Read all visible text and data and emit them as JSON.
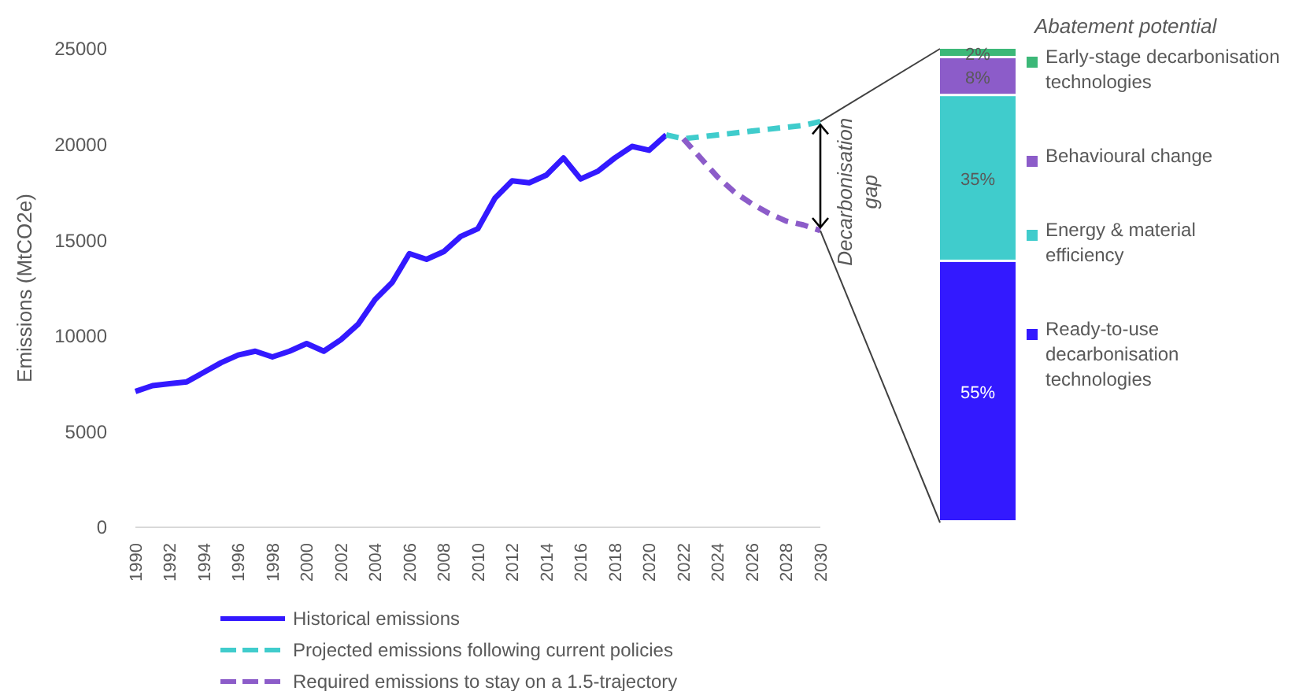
{
  "chart_data": [
    {
      "type": "line",
      "ylabel": "Emissions (MtCO2e)",
      "xlim": [
        1990,
        2030
      ],
      "xticks": [
        1990,
        1992,
        1994,
        1996,
        1998,
        2000,
        2002,
        2004,
        2006,
        2008,
        2010,
        2012,
        2014,
        2016,
        2018,
        2020,
        2022,
        2024,
        2026,
        2028,
        2030
      ],
      "ylim": [
        0,
        25000
      ],
      "yticks": [
        0,
        5000,
        10000,
        15000,
        20000,
        25000
      ],
      "grid": false,
      "legend": "bottom",
      "series": [
        {
          "name": "Historical emissions",
          "color": "#3319ff",
          "line_style": "solid",
          "x": [
            1990,
            1991,
            1992,
            1993,
            1994,
            1995,
            1996,
            1997,
            1998,
            1999,
            2000,
            2001,
            2002,
            2003,
            2004,
            2005,
            2006,
            2007,
            2008,
            2009,
            2010,
            2011,
            2012,
            2013,
            2014,
            2015,
            2016,
            2017,
            2018,
            2019,
            2020,
            2021
          ],
          "values": [
            7100,
            7400,
            7500,
            7600,
            8100,
            8600,
            9000,
            9200,
            8900,
            9200,
            9600,
            9200,
            9800,
            10600,
            11900,
            12800,
            14300,
            14000,
            14400,
            15200,
            15600,
            17200,
            18100,
            18000,
            18400,
            19300,
            18200,
            18600,
            19300,
            19900,
            19700,
            20500
          ]
        },
        {
          "name": "Projected emissions following current policies",
          "color": "#40cccc",
          "line_style": "dashed",
          "x": [
            2021,
            2022,
            2023,
            2024,
            2025,
            2026,
            2027,
            2028,
            2029,
            2030
          ],
          "values": [
            20500,
            20300,
            20400,
            20500,
            20600,
            20700,
            20800,
            20900,
            21000,
            21200
          ]
        },
        {
          "name": "Required emissions to stay on a 1.5-trajectory",
          "color": "#8c5cc9",
          "line_style": "dashed",
          "x": [
            2022,
            2023,
            2024,
            2025,
            2026,
            2027,
            2028,
            2029,
            2030
          ],
          "values": [
            20300,
            19300,
            18300,
            17500,
            16900,
            16400,
            16000,
            15800,
            15500
          ]
        }
      ],
      "annotations": [
        "Decarbonisation gap"
      ]
    },
    {
      "type": "bar",
      "stacked": true,
      "categories": [
        null
      ],
      "legend": "right",
      "legend_title": "Abatement potential",
      "series": [
        {
          "name": "Ready-to-use decarbonisation technologies",
          "color": "#3319ff",
          "values": [
            55
          ],
          "value_labels": [
            "55%"
          ]
        },
        {
          "name": "Energy & material efficiency",
          "color": "#40cccc",
          "values": [
            35
          ],
          "value_labels": [
            "35%"
          ]
        },
        {
          "name": "Behavioural change",
          "color": "#8c5cc9",
          "values": [
            8
          ],
          "value_labels": [
            "8%"
          ]
        },
        {
          "name": "Early-stage decarbonisation technologies",
          "color": "#3cb878",
          "values": [
            2
          ],
          "value_labels": [
            "2%"
          ]
        }
      ]
    }
  ]
}
